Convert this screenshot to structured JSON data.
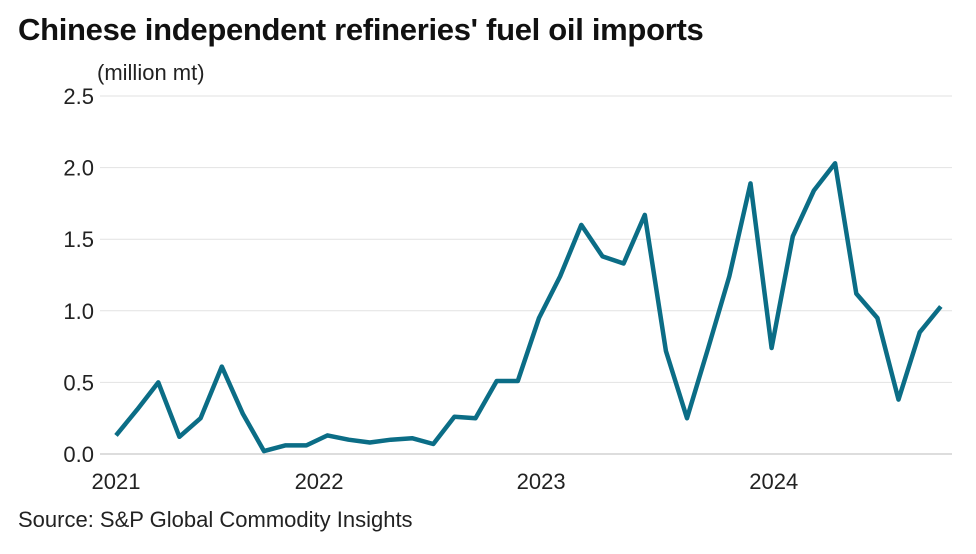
{
  "chart_data": {
    "type": "line",
    "title": "Chinese independent refineries' fuel oil imports",
    "ylabel": "(million mt)",
    "xlabel": "",
    "source": "Source: S&P Global Commodity Insights",
    "ylim": [
      0,
      2.5
    ],
    "yticks": [
      0,
      0.5,
      1.0,
      1.5,
      2.0,
      2.5
    ],
    "ytick_labels": [
      "0.0",
      "0.5",
      "1.0",
      "1.5",
      "2.0",
      "2.5"
    ],
    "xticks": [
      {
        "label": "2021",
        "index": 0
      },
      {
        "label": "2022",
        "index": 9.6
      },
      {
        "label": "2023",
        "index": 20.1
      },
      {
        "label": "2024",
        "index": 31.1
      }
    ],
    "grid": true,
    "legend": "none",
    "line_color": "#0b6d86",
    "series": [
      {
        "name": "Fuel oil imports",
        "values": [
          0.13,
          0.31,
          0.5,
          0.12,
          0.25,
          0.61,
          0.28,
          0.02,
          0.06,
          0.06,
          0.13,
          0.1,
          0.08,
          0.1,
          0.11,
          0.07,
          0.26,
          0.25,
          0.51,
          0.51,
          0.95,
          1.24,
          1.6,
          1.38,
          1.33,
          1.67,
          0.72,
          0.25,
          0.74,
          1.24,
          1.89,
          0.74,
          1.52,
          1.84,
          2.03,
          1.12,
          0.95,
          0.38,
          0.85,
          1.03
        ]
      }
    ]
  }
}
